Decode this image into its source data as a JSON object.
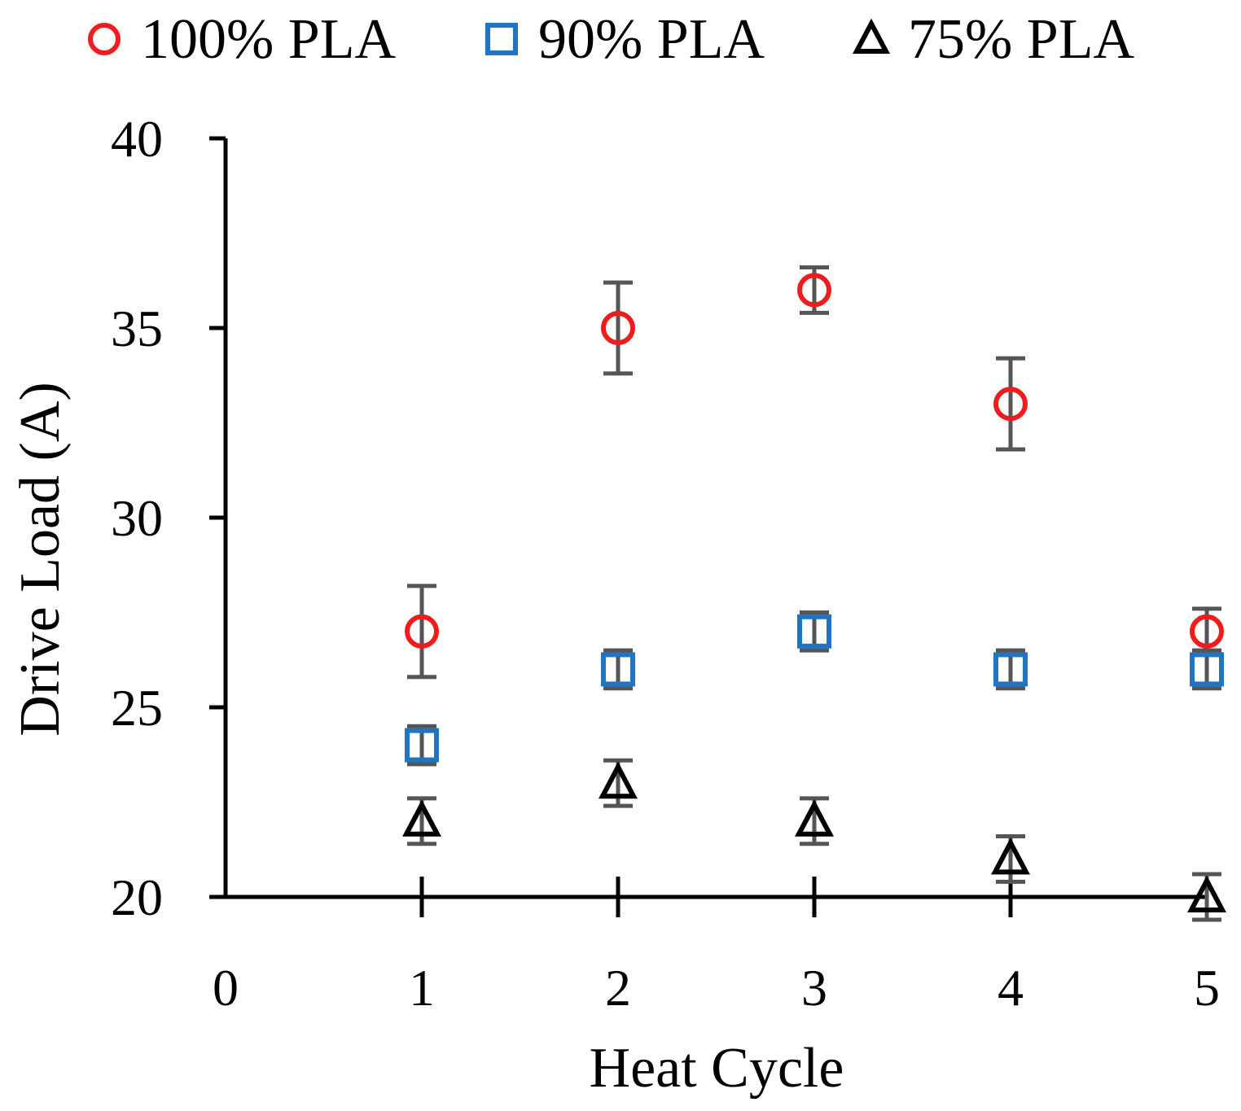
{
  "chart_data": {
    "type": "scatter",
    "title": "",
    "xlabel": "Heat Cycle",
    "ylabel": "Drive Load (A)",
    "xlim": [
      0,
      5
    ],
    "ylim": [
      20,
      40
    ],
    "xticks": [
      0,
      1,
      2,
      3,
      4,
      5
    ],
    "yticks": [
      20,
      25,
      30,
      35,
      40
    ],
    "legend_position": "top",
    "grid": false,
    "series": [
      {
        "name": "100% PLA",
        "marker": "circle",
        "color": "#ee1c1c",
        "x": [
          1,
          2,
          3,
          4,
          5
        ],
        "y": [
          27,
          35,
          36,
          33,
          27
        ],
        "err": [
          1.2,
          1.2,
          0.6,
          1.2,
          0.6
        ]
      },
      {
        "name": "90% PLA",
        "marker": "square",
        "color": "#1f75c4",
        "x": [
          1,
          2,
          3,
          4,
          5
        ],
        "y": [
          24,
          26,
          27,
          26,
          26
        ],
        "err": [
          0.5,
          0.5,
          0.5,
          0.5,
          0.5
        ]
      },
      {
        "name": "75% PLA",
        "marker": "triangle",
        "color": "#000000",
        "x": [
          1,
          2,
          3,
          4,
          5
        ],
        "y": [
          22,
          23,
          22,
          21,
          20
        ],
        "err": [
          0.6,
          0.6,
          0.6,
          0.6,
          0.6
        ]
      }
    ],
    "errorbar_color": "#555555"
  }
}
